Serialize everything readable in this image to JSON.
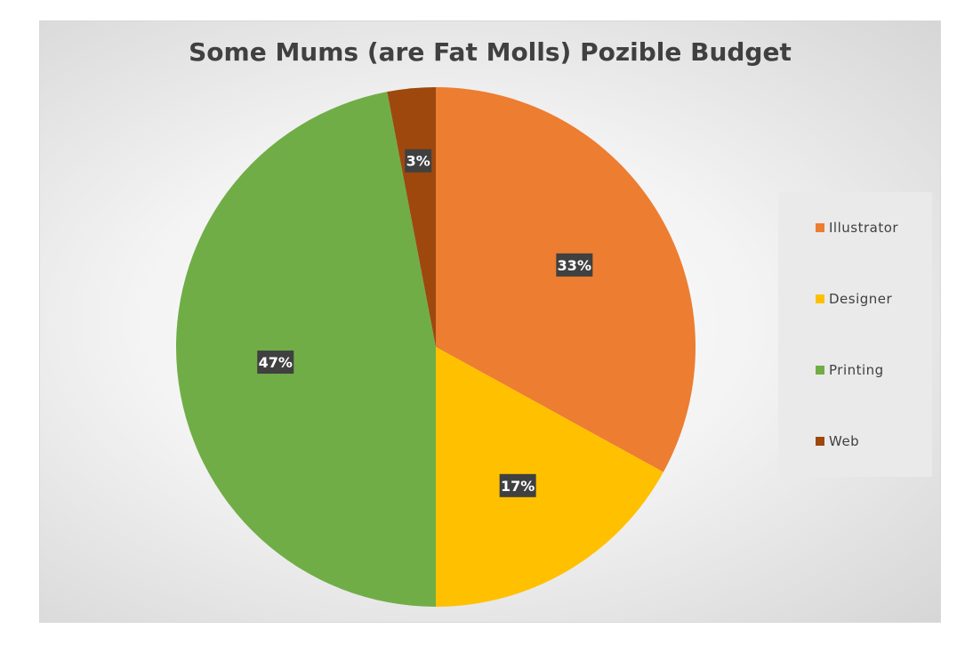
{
  "chart_data": {
    "type": "pie",
    "title": "Some Mums (are Fat Molls) Pozible Budget",
    "categories": [
      "Illustrator",
      "Designer",
      "Printing",
      "Web"
    ],
    "values": [
      33,
      17,
      47,
      3
    ],
    "labels": [
      "33%",
      "17%",
      "47%",
      "3%"
    ],
    "colors": [
      "#ED7D31",
      "#FFC000",
      "#70AD47",
      "#9E480E"
    ],
    "legend_position": "right"
  }
}
